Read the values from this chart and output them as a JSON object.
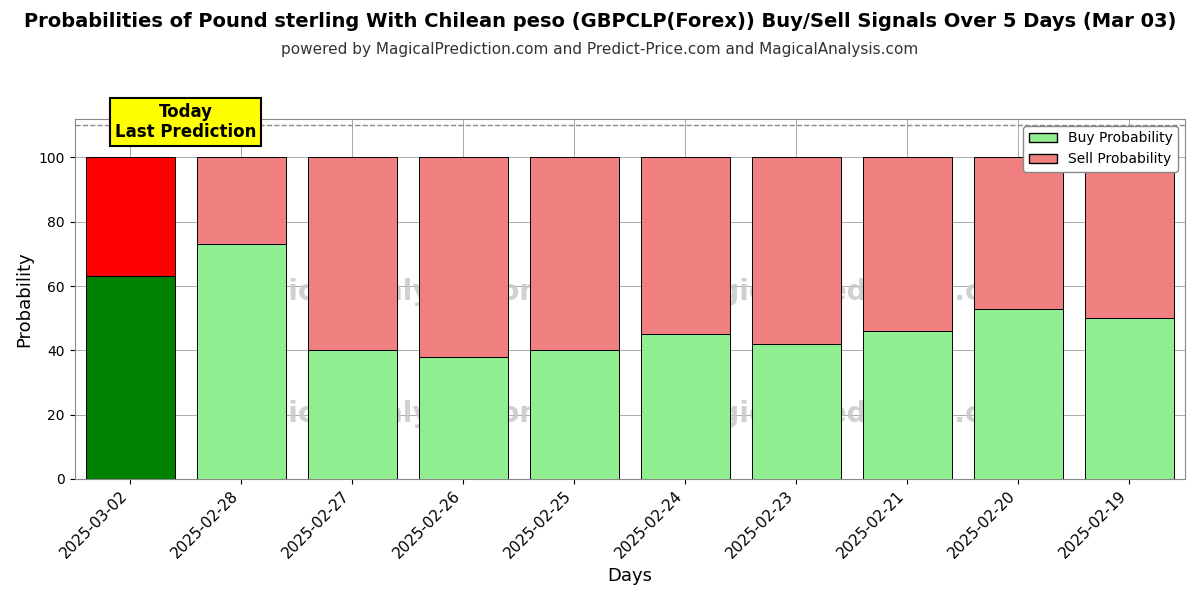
{
  "title": "Probabilities of Pound sterling With Chilean peso (GBPCLP(Forex)) Buy/Sell Signals Over 5 Days (Mar 03)",
  "subtitle": "powered by MagicalPrediction.com and Predict-Price.com and MagicalAnalysis.com",
  "xlabel": "Days",
  "ylabel": "Probability",
  "categories": [
    "2025-03-02",
    "2025-02-28",
    "2025-02-27",
    "2025-02-26",
    "2025-02-25",
    "2025-02-24",
    "2025-02-23",
    "2025-02-21",
    "2025-02-20",
    "2025-02-19"
  ],
  "buy_values": [
    63,
    73,
    40,
    38,
    40,
    45,
    42,
    46,
    53,
    50
  ],
  "sell_values": [
    37,
    27,
    60,
    62,
    60,
    55,
    58,
    54,
    47,
    50
  ],
  "today_bar_buy_color": "#008000",
  "today_bar_sell_color": "#FF0000",
  "other_bar_buy_color": "#90EE90",
  "other_bar_sell_color": "#F08080",
  "bar_edge_color": "#000000",
  "watermark_color": "#C8C8C8",
  "annotation_text": "Today\nLast Prediction",
  "annotation_bg_color": "#FFFF00",
  "annotation_border_color": "#000000",
  "ylim": [
    0,
    112
  ],
  "yticks": [
    0,
    20,
    40,
    60,
    80,
    100
  ],
  "hline_y": 110,
  "legend_buy_label": "Buy Probability",
  "legend_sell_label": "Sell Probability",
  "bg_color": "#FFFFFF",
  "grid_color": "#AAAAAA",
  "title_fontsize": 14,
  "subtitle_fontsize": 11,
  "label_fontsize": 13
}
